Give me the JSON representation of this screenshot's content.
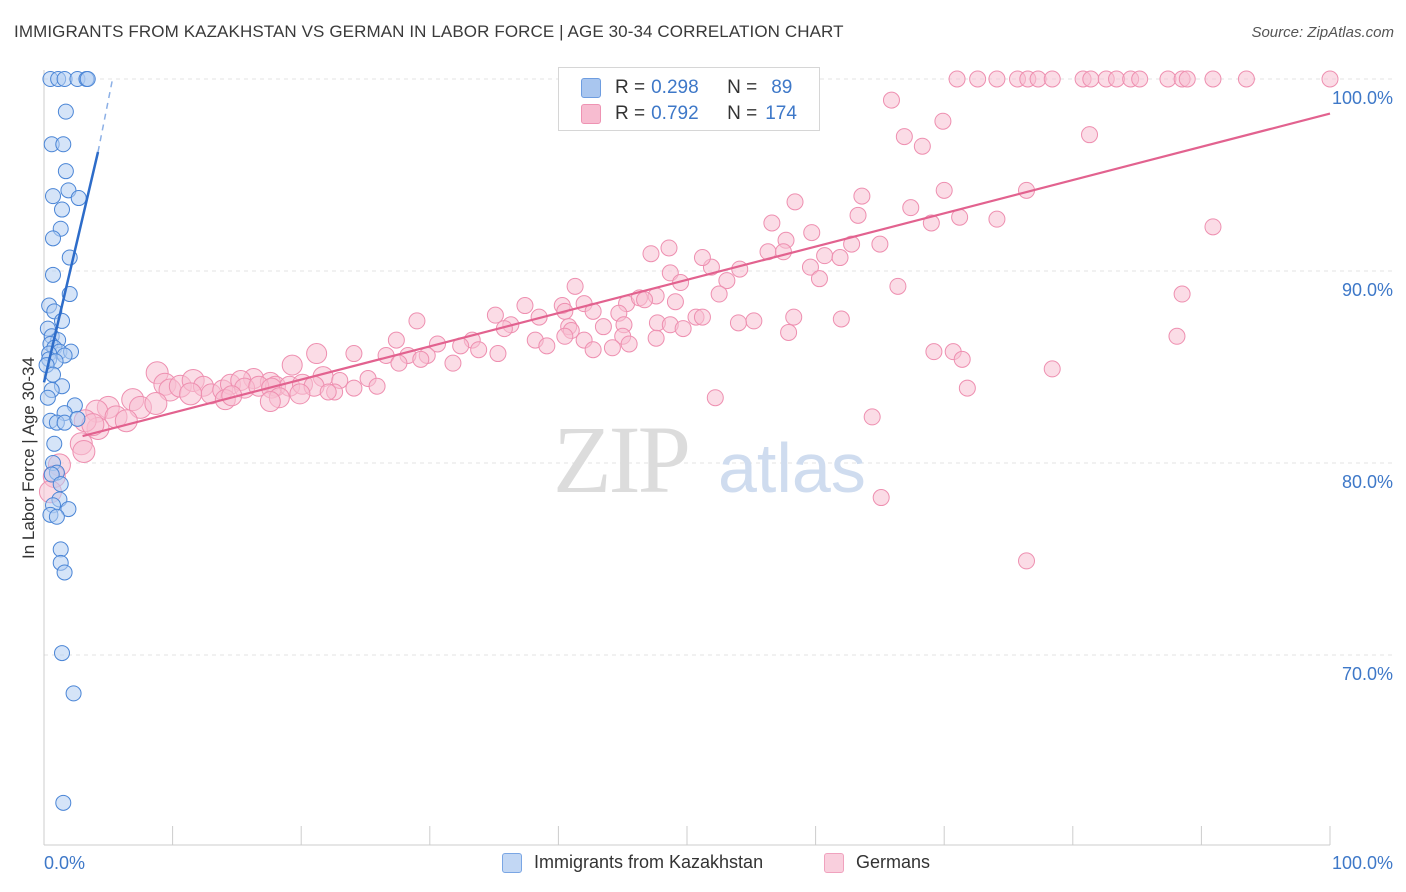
{
  "title": "IMMIGRANTS FROM KAZAKHSTAN VS GERMAN IN LABOR FORCE | AGE 30-34 CORRELATION CHART",
  "source": "Source: ZipAtlas.com",
  "watermark": {
    "zip": "ZIP",
    "atlas": "atlas"
  },
  "legend": {
    "r_label": "R =",
    "n_label": "N =",
    "rows": [
      {
        "r": "0.298",
        "n": "89",
        "fill": "#a9c6ef",
        "stroke": "#6e9de0"
      },
      {
        "r": "0.792",
        "n": "174",
        "fill": "#f7bcd0",
        "stroke": "#ee93b3"
      }
    ]
  },
  "bottom_legend": [
    {
      "label": "Immigrants from Kazakhstan",
      "fill": "#c2d7f4",
      "stroke": "#7aa6e4"
    },
    {
      "label": "Germans",
      "fill": "#f9cfdd",
      "stroke": "#f0a2be"
    }
  ],
  "colors": {
    "blue": "#4a85d6",
    "blue_line": "#2d6cc9",
    "pink": "#ee8fb0",
    "pink_line": "#e2628f",
    "axis_text": "#3e78c8",
    "grid": "#e3e3e3"
  },
  "chart_data": {
    "type": "scatter",
    "title": "IMMIGRANTS FROM KAZAKHSTAN VS GERMAN IN LABOR FORCE | AGE 30-34 CORRELATION CHART",
    "xlabel": "",
    "ylabel": "In Labor Force | Age 30-34",
    "xlim": [
      0,
      100
    ],
    "ylim": [
      60.5,
      101.5
    ],
    "x_tick_labels": [
      "0.0%",
      "100.0%"
    ],
    "y_ticks": [
      70,
      80,
      90,
      100
    ],
    "y_tick_labels": [
      "70.0%",
      "80.0%",
      "90.0%",
      "100.0%"
    ],
    "grid": true,
    "series": [
      {
        "name": "Immigrants from Kazakhstan",
        "r": 0.298,
        "n": 89,
        "trend": {
          "x1": 0,
          "y1": 84.2,
          "x2": 4.2,
          "y2": 96.2,
          "dashed_to": [
            5.3,
            99.9
          ]
        },
        "points": [
          [
            0.5,
            100
          ],
          [
            1.1,
            100
          ],
          [
            1.6,
            100
          ],
          [
            2.6,
            100
          ],
          [
            3.3,
            100
          ],
          [
            3.4,
            100
          ],
          [
            1.7,
            98.3
          ],
          [
            0.6,
            96.6
          ],
          [
            1.5,
            96.6
          ],
          [
            1.7,
            95.2
          ],
          [
            1.9,
            94.2
          ],
          [
            0.7,
            93.9
          ],
          [
            2.7,
            93.8
          ],
          [
            1.4,
            93.2
          ],
          [
            1.3,
            92.2
          ],
          [
            0.7,
            91.7
          ],
          [
            2.0,
            90.7
          ],
          [
            0.7,
            89.8
          ],
          [
            2.0,
            88.8
          ],
          [
            0.4,
            88.2
          ],
          [
            0.8,
            87.9
          ],
          [
            1.4,
            87.4
          ],
          [
            0.3,
            87.0
          ],
          [
            0.6,
            86.6
          ],
          [
            1.1,
            86.4
          ],
          [
            0.5,
            86.2
          ],
          [
            0.8,
            86.0
          ],
          [
            1.2,
            85.8
          ],
          [
            2.1,
            85.8
          ],
          [
            0.4,
            85.7
          ],
          [
            1.6,
            85.6
          ],
          [
            0.4,
            85.4
          ],
          [
            0.9,
            85.3
          ],
          [
            0.2,
            85.1
          ],
          [
            0.7,
            84.6
          ],
          [
            1.4,
            84.0
          ],
          [
            0.6,
            83.8
          ],
          [
            0.3,
            83.4
          ],
          [
            2.4,
            83.0
          ],
          [
            1.6,
            82.6
          ],
          [
            0.5,
            82.2
          ],
          [
            1.0,
            82.1
          ],
          [
            1.6,
            82.1
          ],
          [
            2.6,
            82.3
          ],
          [
            0.8,
            81.0
          ],
          [
            0.7,
            80.0
          ],
          [
            1.0,
            79.5
          ],
          [
            0.6,
            79.4
          ],
          [
            1.3,
            78.9
          ],
          [
            1.2,
            78.1
          ],
          [
            0.7,
            77.8
          ],
          [
            1.9,
            77.6
          ],
          [
            0.5,
            77.3
          ],
          [
            1.0,
            77.2
          ],
          [
            1.3,
            75.5
          ],
          [
            1.3,
            74.8
          ],
          [
            1.6,
            74.3
          ],
          [
            1.4,
            70.1
          ],
          [
            2.3,
            68.0
          ],
          [
            1.5,
            62.3
          ]
        ]
      },
      {
        "name": "Germans",
        "r": 0.792,
        "n": 174,
        "trend": {
          "x1": 3.0,
          "y1": 81.4,
          "x2": 100,
          "y2": 98.2
        },
        "points": [
          [
            71,
            100
          ],
          [
            72.6,
            100
          ],
          [
            74.1,
            100
          ],
          [
            75.7,
            100
          ],
          [
            76.5,
            100
          ],
          [
            77.3,
            100
          ],
          [
            78.4,
            100
          ],
          [
            80.8,
            100
          ],
          [
            81.4,
            100
          ],
          [
            82.6,
            100
          ],
          [
            83.4,
            100
          ],
          [
            84.5,
            100
          ],
          [
            85.2,
            100
          ],
          [
            87.4,
            100
          ],
          [
            88.5,
            100
          ],
          [
            88.9,
            100
          ],
          [
            90.9,
            100
          ],
          [
            93.5,
            100
          ],
          [
            100,
            100
          ],
          [
            65.9,
            98.9
          ],
          [
            69.9,
            97.8
          ],
          [
            66.9,
            97.0
          ],
          [
            81.3,
            97.1
          ],
          [
            68.3,
            96.5
          ],
          [
            63.6,
            93.9
          ],
          [
            70.0,
            94.2
          ],
          [
            76.4,
            94.2
          ],
          [
            58.4,
            93.6
          ],
          [
            67.4,
            93.3
          ],
          [
            63.3,
            92.9
          ],
          [
            71.2,
            92.8
          ],
          [
            74.1,
            92.7
          ],
          [
            69.0,
            92.5
          ],
          [
            56.6,
            92.5
          ],
          [
            90.9,
            92.3
          ],
          [
            59.7,
            92.0
          ],
          [
            57.7,
            91.6
          ],
          [
            62.8,
            91.4
          ],
          [
            65.0,
            91.4
          ],
          [
            48.6,
            91.2
          ],
          [
            56.3,
            91.0
          ],
          [
            57.5,
            91.0
          ],
          [
            47.2,
            90.9
          ],
          [
            60.7,
            90.8
          ],
          [
            61.9,
            90.7
          ],
          [
            59.6,
            90.2
          ],
          [
            54.1,
            90.1
          ],
          [
            48.7,
            89.9
          ],
          [
            51.9,
            90.2
          ],
          [
            51.2,
            90.7
          ],
          [
            53.1,
            89.5
          ],
          [
            49.5,
            89.4
          ],
          [
            60.3,
            89.6
          ],
          [
            66.4,
            89.2
          ],
          [
            88.5,
            88.8
          ],
          [
            52.5,
            88.8
          ],
          [
            41.3,
            89.2
          ],
          [
            40.3,
            88.2
          ],
          [
            42.0,
            88.3
          ],
          [
            45.3,
            88.3
          ],
          [
            46.3,
            88.6
          ],
          [
            47.6,
            88.7
          ],
          [
            46.7,
            88.5
          ],
          [
            49.1,
            88.4
          ],
          [
            37.4,
            88.2
          ],
          [
            38.5,
            87.6
          ],
          [
            40.5,
            87.9
          ],
          [
            42.7,
            87.9
          ],
          [
            44.7,
            87.8
          ],
          [
            50.7,
            87.6
          ],
          [
            51.2,
            87.6
          ],
          [
            58.3,
            87.6
          ],
          [
            62.0,
            87.5
          ],
          [
            55.2,
            87.4
          ],
          [
            54.0,
            87.3
          ],
          [
            35.1,
            87.7
          ],
          [
            36.3,
            87.2
          ],
          [
            45.1,
            87.2
          ],
          [
            47.7,
            87.3
          ],
          [
            48.7,
            87.2
          ],
          [
            49.7,
            87.0
          ],
          [
            57.9,
            86.8
          ],
          [
            35.8,
            87.0
          ],
          [
            40.8,
            87.1
          ],
          [
            41.0,
            86.9
          ],
          [
            43.5,
            87.1
          ],
          [
            45.0,
            86.6
          ],
          [
            47.6,
            86.5
          ],
          [
            29.0,
            87.4
          ],
          [
            27.4,
            86.4
          ],
          [
            33.3,
            86.4
          ],
          [
            38.2,
            86.4
          ],
          [
            30.6,
            86.2
          ],
          [
            32.4,
            86.1
          ],
          [
            33.8,
            85.9
          ],
          [
            39.1,
            86.1
          ],
          [
            35.3,
            85.7
          ],
          [
            40.5,
            86.6
          ],
          [
            42.0,
            86.4
          ],
          [
            42.7,
            85.9
          ],
          [
            44.2,
            86.0
          ],
          [
            45.5,
            86.2
          ],
          [
            21.2,
            85.7
          ],
          [
            24.1,
            85.7
          ],
          [
            26.6,
            85.6
          ],
          [
            28.3,
            85.6
          ],
          [
            29.8,
            85.6
          ],
          [
            31.8,
            85.2
          ],
          [
            29.3,
            85.4
          ],
          [
            27.6,
            85.2
          ],
          [
            88.1,
            86.6
          ],
          [
            69.2,
            85.8
          ],
          [
            70.7,
            85.8
          ],
          [
            71.4,
            85.4
          ],
          [
            78.4,
            84.9
          ],
          [
            19.3,
            85.1
          ],
          [
            21.7,
            84.5
          ],
          [
            23.0,
            84.3
          ],
          [
            25.2,
            84.4
          ],
          [
            16.3,
            84.4
          ],
          [
            17.6,
            84.2
          ],
          [
            18.0,
            84.0
          ],
          [
            8.8,
            84.7
          ],
          [
            9.4,
            84.1
          ],
          [
            9.8,
            83.8
          ],
          [
            10.6,
            84.0
          ],
          [
            11.6,
            84.3
          ],
          [
            12.4,
            84.0
          ],
          [
            13.0,
            83.6
          ],
          [
            13.9,
            83.8
          ],
          [
            14.5,
            84.1
          ],
          [
            15.3,
            84.3
          ],
          [
            15.6,
            83.9
          ],
          [
            16.7,
            84.0
          ],
          [
            17.7,
            83.9
          ],
          [
            19.1,
            84.0
          ],
          [
            20.1,
            84.1
          ],
          [
            21.0,
            84.0
          ],
          [
            22.6,
            83.7
          ],
          [
            24.1,
            83.9
          ],
          [
            25.9,
            84.0
          ],
          [
            11.4,
            83.6
          ],
          [
            14.1,
            83.3
          ],
          [
            19.9,
            83.6
          ],
          [
            18.3,
            83.4
          ],
          [
            22.1,
            83.7
          ],
          [
            14.6,
            83.5
          ],
          [
            71.8,
            83.9
          ],
          [
            5.0,
            82.9
          ],
          [
            6.9,
            83.3
          ],
          [
            7.5,
            82.9
          ],
          [
            8.7,
            83.1
          ],
          [
            4.1,
            82.7
          ],
          [
            5.6,
            82.4
          ],
          [
            6.4,
            82.2
          ],
          [
            4.2,
            81.8
          ],
          [
            3.2,
            82.2
          ],
          [
            3.8,
            82.0
          ],
          [
            2.9,
            81.0
          ],
          [
            64.4,
            82.4
          ],
          [
            52.2,
            83.4
          ],
          [
            17.6,
            83.2
          ],
          [
            3.1,
            80.6
          ],
          [
            1.2,
            79.9
          ],
          [
            0.8,
            79.3
          ],
          [
            0.5,
            78.5
          ],
          [
            65.1,
            78.2
          ],
          [
            76.4,
            74.9
          ]
        ]
      }
    ]
  }
}
